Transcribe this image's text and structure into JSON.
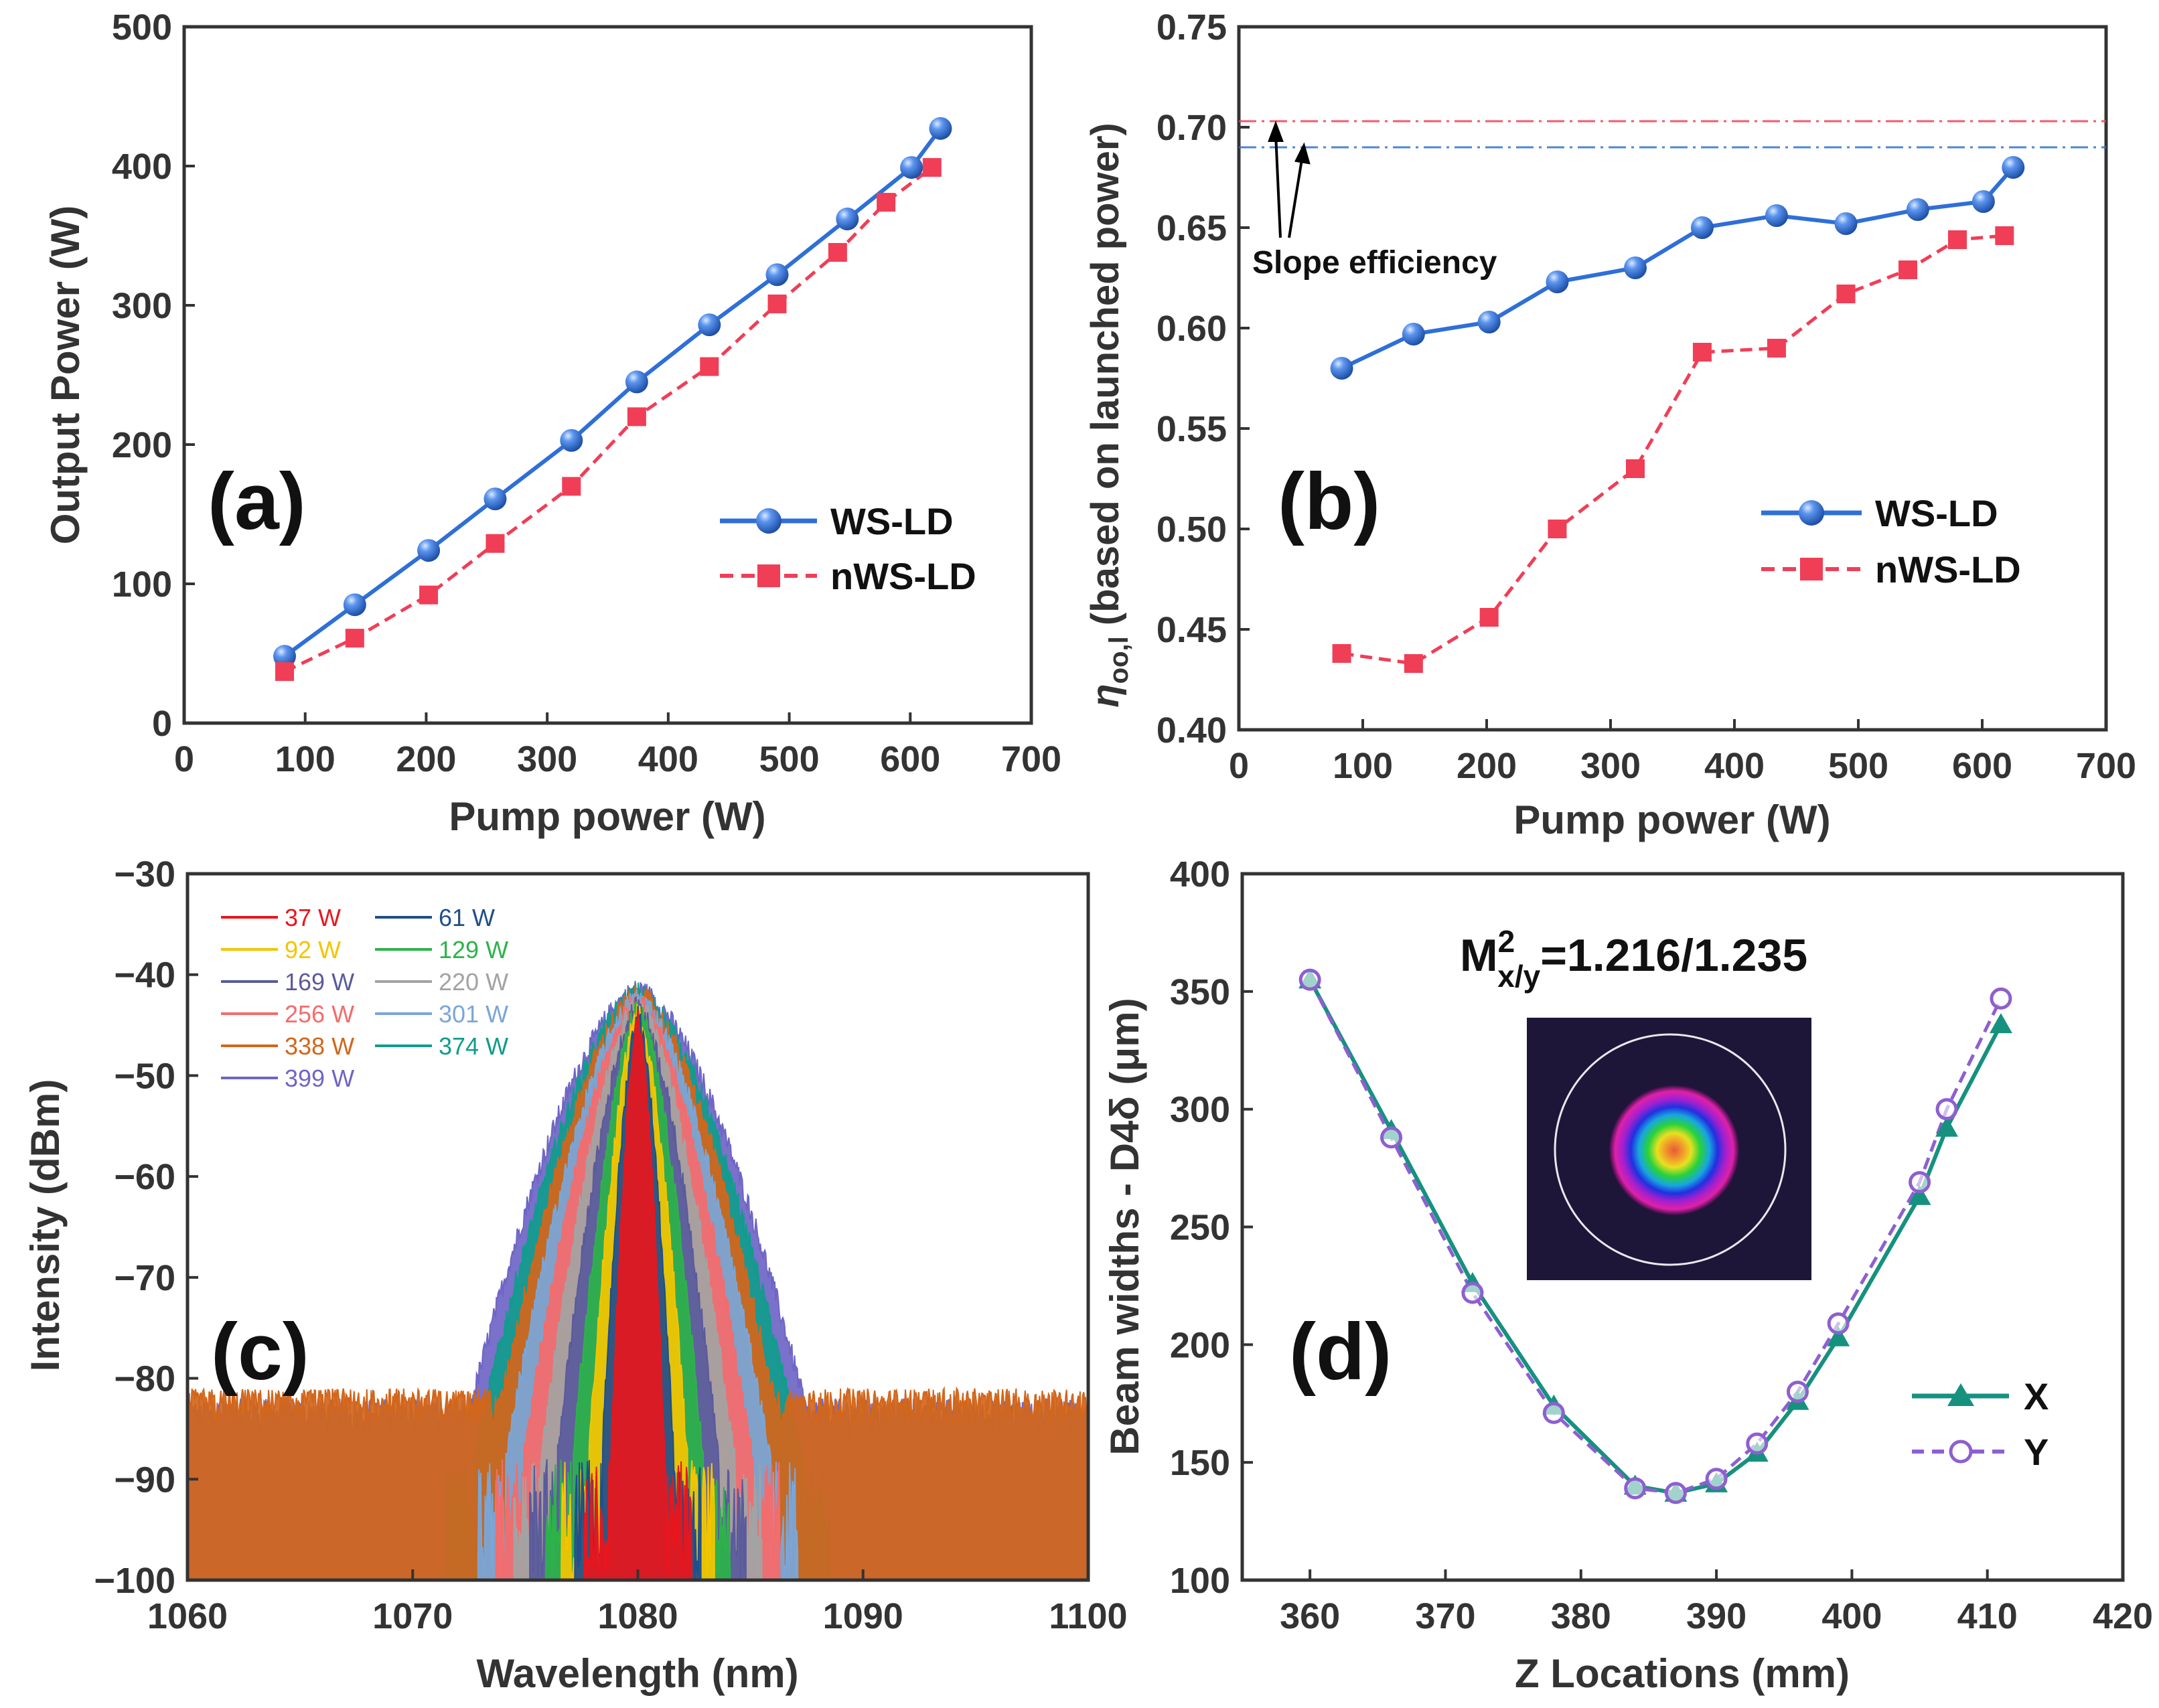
{
  "chart_data": [
    {
      "id": "a",
      "type": "line",
      "panel_label": "(a)",
      "xlabel": "Pump power (W)",
      "ylabel": "Output Power (W)",
      "xlim": [
        0,
        700
      ],
      "ylim": [
        0,
        500
      ],
      "xticks": [
        0,
        100,
        200,
        300,
        400,
        500,
        600,
        700
      ],
      "yticks": [
        0,
        100,
        200,
        300,
        400,
        500
      ],
      "legend_position": "bottom-right",
      "series": [
        {
          "name": "WS-LD",
          "color": "#2E6FD8",
          "marker": "sphere",
          "line": "solid",
          "x": [
            83,
            141,
            202,
            257,
            320,
            374,
            434,
            490,
            548,
            601,
            625
          ],
          "y": [
            48,
            85,
            124,
            161,
            203,
            245,
            286,
            322,
            362,
            399,
            427
          ]
        },
        {
          "name": "nWS-LD",
          "color": "#F03E57",
          "marker": "square",
          "line": "dashed",
          "x": [
            83,
            141,
            202,
            257,
            320,
            374,
            434,
            490,
            540,
            580,
            618
          ],
          "y": [
            37,
            61,
            92,
            129,
            170,
            220,
            256,
            301,
            338,
            374,
            399
          ]
        }
      ]
    },
    {
      "id": "b",
      "type": "line",
      "panel_label": "(b)",
      "xlabel": "Pump power (W)",
      "ylabel": "η",
      "ylabel_sub": "oo,l",
      "ylabel_rest": " (based on launched power)",
      "xlim": [
        0,
        700
      ],
      "ylim": [
        0.4,
        0.75
      ],
      "xticks": [
        0,
        100,
        200,
        300,
        400,
        500,
        600,
        700
      ],
      "yticks": [
        0.4,
        0.45,
        0.5,
        0.55,
        0.6,
        0.65,
        0.7,
        0.75
      ],
      "legend_position": "middle-right",
      "reference_lines": [
        {
          "y": 0.703,
          "color": "#F03E57"
        },
        {
          "y": 0.69,
          "color": "#2E6FD8"
        }
      ],
      "annotation": "Slope efficiency",
      "series": [
        {
          "name": "WS-LD",
          "color": "#2E6FD8",
          "marker": "sphere",
          "line": "solid",
          "x": [
            83,
            141,
            202,
            257,
            320,
            374,
            434,
            490,
            548,
            601,
            625
          ],
          "y": [
            0.58,
            0.597,
            0.603,
            0.623,
            0.63,
            0.65,
            0.656,
            0.652,
            0.659,
            0.663,
            0.68
          ]
        },
        {
          "name": "nWS-LD",
          "color": "#F03E57",
          "marker": "square",
          "line": "dashed",
          "x": [
            83,
            141,
            202,
            257,
            320,
            374,
            434,
            490,
            540,
            580,
            618
          ],
          "y": [
            0.438,
            0.433,
            0.456,
            0.5,
            0.53,
            0.588,
            0.59,
            0.617,
            0.629,
            0.644,
            0.646
          ]
        }
      ]
    },
    {
      "id": "c",
      "type": "area",
      "panel_label": "(c)",
      "xlabel": "Wavelength (nm)",
      "ylabel": "Intensity (dBm)",
      "xlim": [
        1060,
        1100
      ],
      "ylim": [
        -100,
        -30
      ],
      "xticks": [
        1060,
        1070,
        1080,
        1090,
        1100
      ],
      "yticks": [
        -100,
        -90,
        -80,
        -70,
        -60,
        -50,
        -40,
        -30
      ],
      "legend_position": "top-left",
      "center_nm": 1080,
      "series": [
        {
          "name": "37 W",
          "color": "#E8161D",
          "peak": -44.5,
          "halfwidth_nm": 1.2,
          "floor": -100
        },
        {
          "name": "61 W",
          "color": "#1F4E8C",
          "peak": -44.0,
          "halfwidth_nm": 1.6,
          "floor": -100
        },
        {
          "name": "92 W",
          "color": "#F5C400",
          "peak": -43.8,
          "halfwidth_nm": 2.2,
          "floor": -100
        },
        {
          "name": "129 W",
          "color": "#2DB34A",
          "peak": -43.5,
          "halfwidth_nm": 2.9,
          "floor": -100
        },
        {
          "name": "169 W",
          "color": "#5A5A9C",
          "peak": -43.2,
          "halfwidth_nm": 3.6,
          "floor": -100
        },
        {
          "name": "220 W",
          "color": "#A3A3A3",
          "peak": -42.9,
          "halfwidth_nm": 4.3,
          "floor": -100
        },
        {
          "name": "256 W",
          "color": "#F56B6B",
          "peak": -42.6,
          "halfwidth_nm": 5.1,
          "floor": -100
        },
        {
          "name": "301 W",
          "color": "#7AA6D8",
          "peak": -42.3,
          "halfwidth_nm": 5.9,
          "floor": -100
        },
        {
          "name": "338 W",
          "color": "#D2661B",
          "peak": -42.0,
          "halfwidth_nm": 6.6,
          "floor": -83
        },
        {
          "name": "374 W",
          "color": "#119C8C",
          "peak": -41.8,
          "halfwidth_nm": 7.3,
          "floor": -100
        },
        {
          "name": "399 W",
          "color": "#6E65C5",
          "peak": -41.5,
          "halfwidth_nm": 8.0,
          "floor": -84
        }
      ]
    },
    {
      "id": "d",
      "type": "line",
      "panel_label": "(d)",
      "xlabel": "Z Locations (mm)",
      "ylabel": "Beam widths - D4δ (μm)",
      "xlim": [
        355,
        420
      ],
      "ylim": [
        100,
        400
      ],
      "xticks": [
        360,
        370,
        380,
        390,
        400,
        410,
        420
      ],
      "yticks": [
        100,
        150,
        200,
        250,
        300,
        350,
        400
      ],
      "legend_position": "bottom-right",
      "inset_title": "M",
      "inset_title_sup": "2",
      "inset_title_sub": "x/y",
      "inset_title_rest": "=1.216/1.235",
      "inset_image": "beam-profile",
      "series": [
        {
          "name": "X",
          "color": "#16917F",
          "marker": "triangle",
          "line": "solid",
          "x": [
            360,
            366,
            372,
            378,
            384,
            387,
            390,
            393,
            396,
            399,
            405,
            407,
            411
          ],
          "y": [
            355,
            291,
            226,
            174,
            140,
            137,
            141,
            154,
            176,
            203,
            263,
            292,
            336
          ]
        },
        {
          "name": "Y",
          "color": "#8E5FD0",
          "marker": "circle-open",
          "line": "dashed",
          "x": [
            360,
            366,
            372,
            378,
            384,
            387,
            390,
            393,
            396,
            399,
            405,
            407,
            411
          ],
          "y": [
            355,
            288,
            222,
            171,
            139,
            137,
            143,
            158,
            180,
            209,
            269,
            300,
            347
          ]
        }
      ]
    }
  ]
}
